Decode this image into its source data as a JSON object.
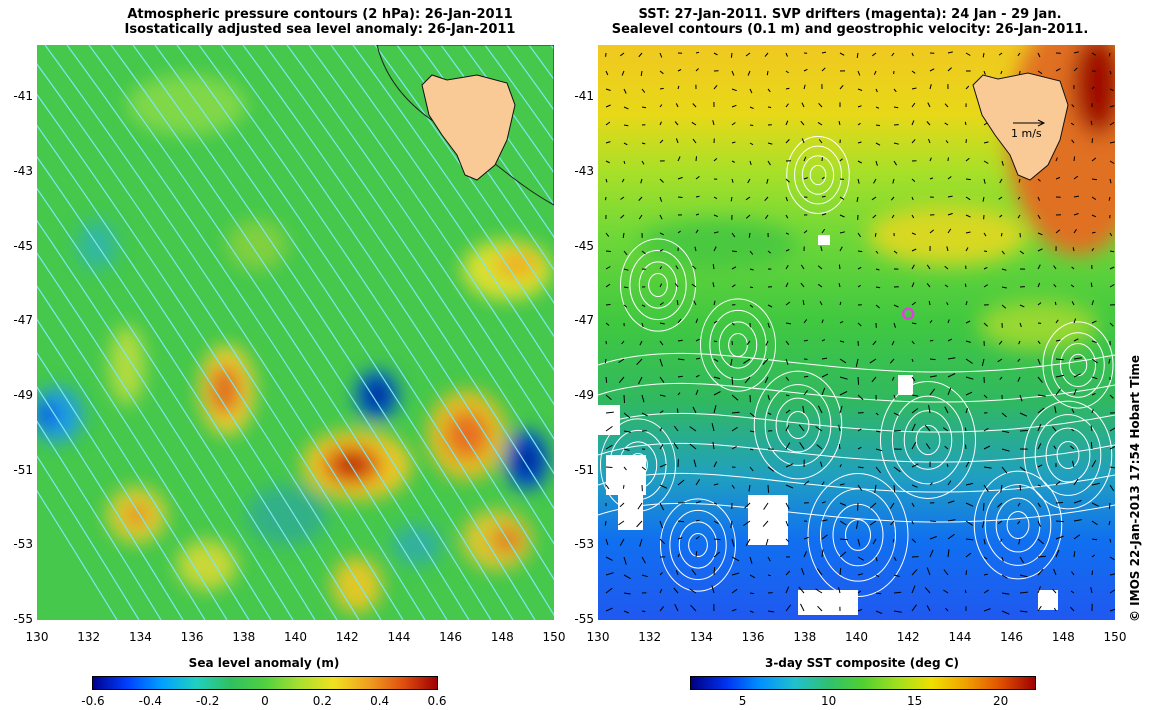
{
  "left_panel": {
    "title_line1": "Atmospheric pressure contours (2 hPa): 26-Jan-2011",
    "title_line2": "Isostatically adjusted sea level anomaly: 26-Jan-2011",
    "colorbar_label": "Sea level anomaly (m)",
    "colorbar_ticks": [
      "-0.6",
      "-0.4",
      "-0.2",
      "0",
      "0.2",
      "0.4",
      "0.6"
    ],
    "colorbar_range": [
      -0.6,
      0.6
    ]
  },
  "right_panel": {
    "title_line1": "SST: 27-Jan-2011. SVP drifters (magenta): 24 Jan - 29 Jan.",
    "title_line2": "Sealevel contours (0.1 m) and geostrophic velocity: 26-Jan-2011.",
    "colorbar_label": "3-day SST composite (deg C)",
    "colorbar_ticks": [
      "5",
      "10",
      "15",
      "20"
    ],
    "colorbar_range": [
      2,
      22
    ],
    "velocity_scale_label": "1 m/s",
    "drifter_position": {
      "lon": 142,
      "lat": -46.8
    }
  },
  "axes": {
    "lon_ticks": [
      "130",
      "132",
      "134",
      "136",
      "138",
      "140",
      "142",
      "144",
      "146",
      "148",
      "150"
    ],
    "lat_ticks": [
      "-41",
      "-43",
      "-45",
      "-47",
      "-49",
      "-51",
      "-53",
      "-55"
    ],
    "lon_range": [
      130,
      150
    ],
    "lat_range": [
      -55,
      -39.6
    ]
  },
  "credit": "© IMOS 22-Jan-2013 17:54 Hobart Time",
  "colors": {
    "land": "#f9c996",
    "drifter": "#e040e0",
    "contours_left": "#7fe6f0",
    "contours_right": "#ffffff"
  }
}
